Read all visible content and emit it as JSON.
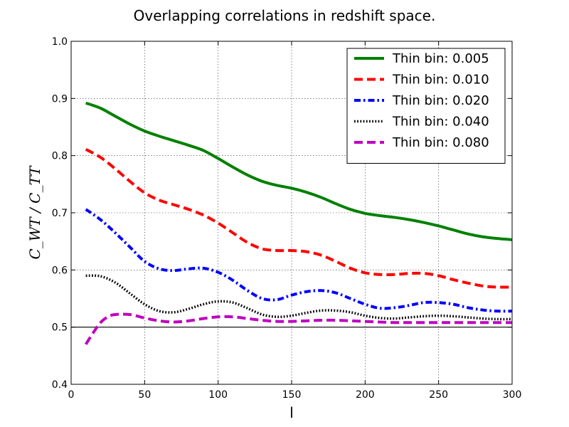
{
  "chart_data": {
    "type": "line",
    "title": "Overlapping correlations in redshift space.",
    "xlabel": "l",
    "ylabel": "C_WT / C_TT",
    "xlim": [
      0,
      300
    ],
    "ylim": [
      0.4,
      1.0
    ],
    "xticks": [
      0,
      50,
      100,
      150,
      200,
      250,
      300
    ],
    "yticks": [
      0.4,
      0.5,
      0.6,
      0.7,
      0.8,
      0.9,
      1.0
    ],
    "xtick_labels": [
      "0",
      "50",
      "100",
      "150",
      "200",
      "250",
      "300"
    ],
    "ytick_labels": [
      "0.4",
      "0.5",
      "0.6",
      "0.7",
      "0.8",
      "0.9",
      "1.0"
    ],
    "grid": true,
    "reference_line": 0.5,
    "legend_position": "top-right",
    "series": [
      {
        "name": "Thin bin: 0.005",
        "color": "#008000",
        "style": "solid",
        "x": [
          10,
          20,
          30,
          40,
          50,
          60,
          70,
          80,
          90,
          100,
          110,
          120,
          130,
          140,
          150,
          160,
          170,
          180,
          190,
          200,
          210,
          220,
          230,
          240,
          250,
          260,
          270,
          280,
          290,
          300
        ],
        "y": [
          0.892,
          0.883,
          0.869,
          0.855,
          0.843,
          0.834,
          0.826,
          0.818,
          0.809,
          0.795,
          0.78,
          0.766,
          0.755,
          0.748,
          0.743,
          0.736,
          0.727,
          0.716,
          0.706,
          0.699,
          0.695,
          0.692,
          0.688,
          0.683,
          0.677,
          0.67,
          0.663,
          0.658,
          0.655,
          0.653
        ]
      },
      {
        "name": "Thin bin: 0.010",
        "color": "#ff0000",
        "style": "dashed",
        "x": [
          10,
          20,
          30,
          40,
          50,
          60,
          70,
          80,
          90,
          100,
          110,
          120,
          130,
          140,
          150,
          160,
          170,
          180,
          190,
          200,
          210,
          220,
          230,
          240,
          250,
          260,
          270,
          280,
          290,
          300
        ],
        "y": [
          0.811,
          0.797,
          0.777,
          0.755,
          0.735,
          0.722,
          0.714,
          0.706,
          0.696,
          0.682,
          0.665,
          0.648,
          0.637,
          0.634,
          0.634,
          0.632,
          0.626,
          0.615,
          0.603,
          0.595,
          0.592,
          0.592,
          0.594,
          0.594,
          0.59,
          0.583,
          0.577,
          0.572,
          0.57,
          0.57
        ]
      },
      {
        "name": "Thin bin: 0.020",
        "color": "#0000ff",
        "style": "dashdot",
        "x": [
          10,
          20,
          30,
          40,
          50,
          60,
          70,
          80,
          90,
          100,
          110,
          120,
          130,
          140,
          150,
          160,
          170,
          180,
          190,
          200,
          210,
          220,
          230,
          240,
          250,
          260,
          270,
          280,
          290,
          300
        ],
        "y": [
          0.706,
          0.688,
          0.665,
          0.64,
          0.615,
          0.602,
          0.599,
          0.602,
          0.603,
          0.596,
          0.582,
          0.564,
          0.55,
          0.548,
          0.556,
          0.562,
          0.564,
          0.56,
          0.55,
          0.54,
          0.533,
          0.534,
          0.538,
          0.543,
          0.543,
          0.54,
          0.534,
          0.53,
          0.528,
          0.528
        ]
      },
      {
        "name": "Thin bin: 0.040",
        "color": "#000000",
        "style": "dotted",
        "x": [
          10,
          20,
          30,
          40,
          50,
          60,
          70,
          80,
          90,
          100,
          110,
          120,
          130,
          140,
          150,
          160,
          170,
          180,
          190,
          200,
          210,
          220,
          230,
          240,
          250,
          260,
          270,
          280,
          290,
          300
        ],
        "y": [
          0.59,
          0.589,
          0.578,
          0.559,
          0.54,
          0.528,
          0.526,
          0.532,
          0.54,
          0.545,
          0.543,
          0.533,
          0.522,
          0.518,
          0.52,
          0.525,
          0.529,
          0.529,
          0.526,
          0.52,
          0.516,
          0.515,
          0.517,
          0.519,
          0.52,
          0.519,
          0.517,
          0.515,
          0.514,
          0.514
        ]
      },
      {
        "name": "Thin bin: 0.080",
        "color": "#bf00bf",
        "style": "dashed",
        "x": [
          10,
          15,
          20,
          25,
          30,
          40,
          50,
          60,
          70,
          80,
          90,
          100,
          110,
          120,
          130,
          140,
          150,
          160,
          170,
          180,
          190,
          200,
          210,
          220,
          230,
          240,
          250,
          260,
          270,
          280,
          290,
          300
        ],
        "y": [
          0.47,
          0.49,
          0.508,
          0.518,
          0.522,
          0.522,
          0.516,
          0.511,
          0.509,
          0.511,
          0.515,
          0.518,
          0.518,
          0.515,
          0.512,
          0.51,
          0.51,
          0.511,
          0.512,
          0.512,
          0.511,
          0.51,
          0.509,
          0.508,
          0.508,
          0.508,
          0.508,
          0.508,
          0.508,
          0.508,
          0.508,
          0.508
        ]
      }
    ]
  }
}
